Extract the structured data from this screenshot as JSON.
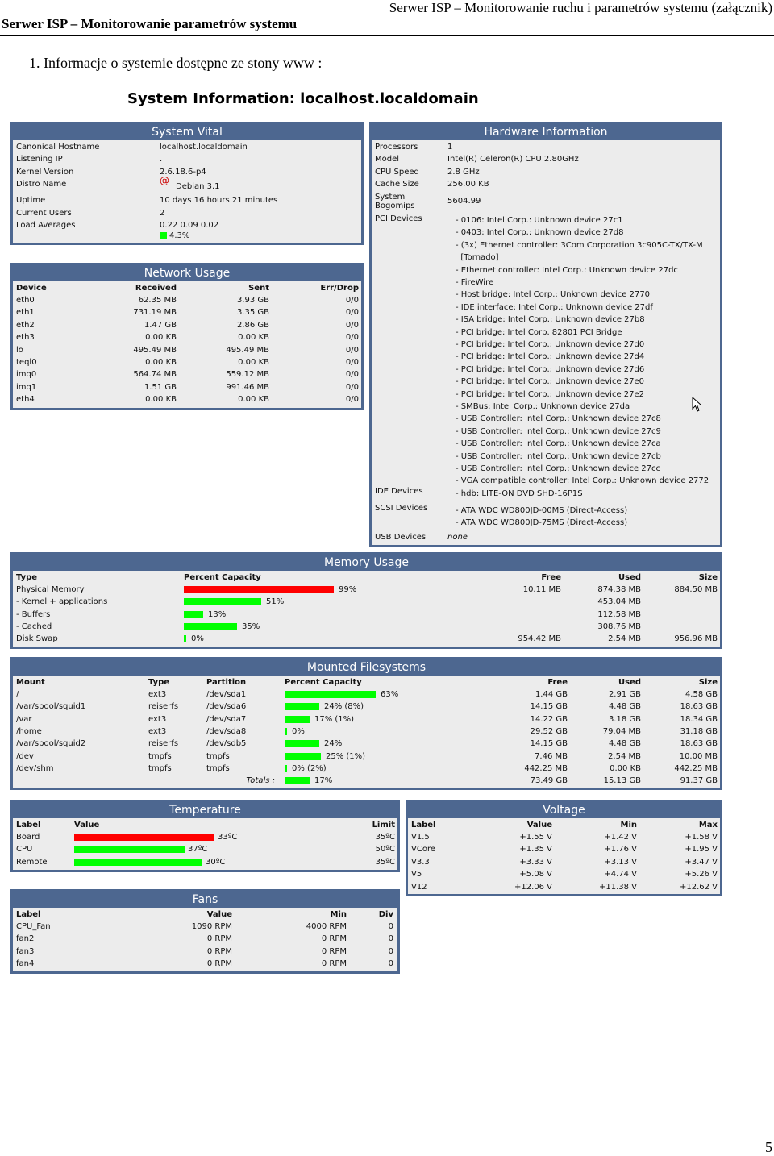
{
  "header": {
    "left": "Serwer ISP – Monitorowanie parametrów systemu",
    "right": "Serwer ISP – Monitorowanie ruchu i parametrów systemu (załącznik)"
  },
  "section_heading": "1.   Informacje o systemie dostępne ze stony www :",
  "page_number": "5",
  "sysinfo_title": "System Information: localhost.localdomain",
  "system_vital": {
    "title": "System Vital",
    "rows": [
      {
        "label": "Canonical Hostname",
        "value": "localhost.localdomain"
      },
      {
        "label": "Listening IP",
        "value": "."
      },
      {
        "label": "Kernel Version",
        "value": "2.6.18.6-p4"
      },
      {
        "label": "Distro Name",
        "value": "Debian 3.1"
      },
      {
        "label": "Uptime",
        "value": "10 days 16 hours 21 minutes"
      },
      {
        "label": "Current Users",
        "value": "2"
      },
      {
        "label": "Load Averages",
        "value": "0.22 0.09 0.02"
      }
    ],
    "load_percent": "4.3%",
    "load_fraction": 0.043
  },
  "network": {
    "title": "Network Usage",
    "headers": [
      "Device",
      "Received",
      "Sent",
      "Err/Drop"
    ],
    "rows": [
      [
        "eth0",
        "62.35 MB",
        "3.93 GB",
        "0/0"
      ],
      [
        "eth1",
        "731.19 MB",
        "3.35 GB",
        "0/0"
      ],
      [
        "eth2",
        "1.47 GB",
        "2.86 GB",
        "0/0"
      ],
      [
        "eth3",
        "0.00 KB",
        "0.00 KB",
        "0/0"
      ],
      [
        "lo",
        "495.49 MB",
        "495.49 MB",
        "0/0"
      ],
      [
        "teql0",
        "0.00 KB",
        "0.00 KB",
        "0/0"
      ],
      [
        "imq0",
        "564.74 MB",
        "559.12 MB",
        "0/0"
      ],
      [
        "imq1",
        "1.51 GB",
        "991.46 MB",
        "0/0"
      ],
      [
        "eth4",
        "0.00 KB",
        "0.00 KB",
        "0/0"
      ]
    ]
  },
  "hardware": {
    "title": "Hardware Information",
    "processors_label": "Processors",
    "processors": "1",
    "model_label": "Model",
    "model": "Intel(R) Celeron(R) CPU 2.80GHz",
    "cpu_speed_label": "CPU Speed",
    "cpu_speed": "2.8 GHz",
    "cache_label": "Cache Size",
    "cache": "256.00 KB",
    "bogomips_label1": "System",
    "bogomips_label2": "Bogomips",
    "bogomips": "5604.99",
    "pci_label": "PCI Devices",
    "pci": [
      "- 0106: Intel Corp.: Unknown device 27c1",
      "- 0403: Intel Corp.: Unknown device 27d8",
      "- (3x) Ethernet controller: 3Com Corporation 3c905C-TX/TX-M",
      "  [Tornado]",
      "- Ethernet controller: Intel Corp.: Unknown device 27dc",
      "- FireWire",
      "- Host bridge: Intel Corp.: Unknown device 2770",
      "- IDE interface: Intel Corp.: Unknown device 27df",
      "- ISA bridge: Intel Corp.: Unknown device 27b8",
      "- PCI bridge: Intel Corp. 82801 PCI Bridge",
      "- PCI bridge: Intel Corp.: Unknown device 27d0",
      "- PCI bridge: Intel Corp.: Unknown device 27d4",
      "- PCI bridge: Intel Corp.: Unknown device 27d6",
      "- PCI bridge: Intel Corp.: Unknown device 27e0",
      "- PCI bridge: Intel Corp.: Unknown device 27e2",
      "- SMBus: Intel Corp.: Unknown device 27da",
      "- USB Controller: Intel Corp.: Unknown device 27c8",
      "- USB Controller: Intel Corp.: Unknown device 27c9",
      "- USB Controller: Intel Corp.: Unknown device 27ca",
      "- USB Controller: Intel Corp.: Unknown device 27cb",
      "- USB Controller: Intel Corp.: Unknown device 27cc",
      "- VGA compatible controller: Intel Corp.: Unknown device 2772"
    ],
    "ide_label": "IDE Devices",
    "ide": "- hdb: LITE-ON DVD SHD-16P1S",
    "scsi_label": "SCSI Devices",
    "scsi": [
      "- ATA WDC WD800JD-00MS (Direct-Access)",
      "- ATA WDC WD800JD-75MS (Direct-Access)"
    ],
    "usb_label": "USB Devices",
    "usb": "none"
  },
  "memory": {
    "title": "Memory Usage",
    "headers": [
      "Type",
      "Percent Capacity",
      "Free",
      "Used",
      "Size"
    ],
    "rows": [
      {
        "type": "Physical Memory",
        "pct": "99%",
        "frac": 0.99,
        "color": "#ff0000",
        "free": "10.11 MB",
        "used": "874.38 MB",
        "size": "884.50 MB"
      },
      {
        "type": "- Kernel + applications",
        "pct": "51%",
        "frac": 0.51,
        "color": "#00ff00",
        "free": "",
        "used": "453.04 MB",
        "size": ""
      },
      {
        "type": "- Buffers",
        "pct": "13%",
        "frac": 0.13,
        "color": "#00ff00",
        "free": "",
        "used": "112.58 MB",
        "size": ""
      },
      {
        "type": "- Cached",
        "pct": "35%",
        "frac": 0.35,
        "color": "#00ff00",
        "free": "",
        "used": "308.76 MB",
        "size": ""
      },
      {
        "type": "Disk Swap",
        "pct": "0%",
        "frac": 0.0,
        "color": "#00ff00",
        "free": "954.42 MB",
        "used": "2.54 MB",
        "size": "956.96 MB"
      }
    ]
  },
  "filesystems": {
    "title": "Mounted Filesystems",
    "headers": [
      "Mount",
      "Type",
      "Partition",
      "Percent Capacity",
      "Free",
      "Used",
      "Size"
    ],
    "rows": [
      {
        "mount": "/",
        "type": "ext3",
        "part": "/dev/sda1",
        "pct": "63%",
        "frac": 0.63,
        "free": "1.44 GB",
        "used": "2.91 GB",
        "size": "4.58 GB"
      },
      {
        "mount": "/var/spool/squid1",
        "type": "reiserfs",
        "part": "/dev/sda6",
        "pct": "24% (8%)",
        "frac": 0.24,
        "free": "14.15 GB",
        "used": "4.48 GB",
        "size": "18.63 GB"
      },
      {
        "mount": "/var",
        "type": "ext3",
        "part": "/dev/sda7",
        "pct": "17% (1%)",
        "frac": 0.17,
        "free": "14.22 GB",
        "used": "3.18 GB",
        "size": "18.34 GB"
      },
      {
        "mount": "/home",
        "type": "ext3",
        "part": "/dev/sda8",
        "pct": "0%",
        "frac": 0.0,
        "free": "29.52 GB",
        "used": "79.04 MB",
        "size": "31.18 GB"
      },
      {
        "mount": "/var/spool/squid2",
        "type": "reiserfs",
        "part": "/dev/sdb5",
        "pct": "24%",
        "frac": 0.24,
        "free": "14.15 GB",
        "used": "4.48 GB",
        "size": "18.63 GB"
      },
      {
        "mount": "/dev",
        "type": "tmpfs",
        "part": "tmpfs",
        "pct": "25% (1%)",
        "frac": 0.25,
        "free": "7.46 MB",
        "used": "2.54 MB",
        "size": "10.00 MB"
      },
      {
        "mount": "/dev/shm",
        "type": "tmpfs",
        "part": "tmpfs",
        "pct": "0% (2%)",
        "frac": 0.0,
        "free": "442.25 MB",
        "used": "0.00 KB",
        "size": "442.25 MB"
      }
    ],
    "totals_label": "Totals :",
    "totals": {
      "pct": "17%",
      "frac": 0.17,
      "free": "73.49 GB",
      "used": "15.13 GB",
      "size": "91.37 GB"
    }
  },
  "temperature": {
    "title": "Temperature",
    "headers": [
      "Label",
      "Value",
      "Limit"
    ],
    "rows": [
      {
        "label": "Board",
        "value": "33ºC",
        "frac": 0.94,
        "color": "#ff0000",
        "limit": "35ºC"
      },
      {
        "label": "CPU",
        "value": "37ºC",
        "frac": 0.74,
        "color": "#00ff00",
        "limit": "50ºC"
      },
      {
        "label": "Remote",
        "value": "30ºC",
        "frac": 0.86,
        "color": "#00ff00",
        "limit": "35ºC"
      }
    ]
  },
  "voltage": {
    "title": "Voltage",
    "headers": [
      "Label",
      "Value",
      "Min",
      "Max"
    ],
    "rows": [
      [
        "V1.5",
        "+1.55 V",
        "+1.42 V",
        "+1.58 V"
      ],
      [
        "VCore",
        "+1.35 V",
        "+1.76 V",
        "+1.95 V"
      ],
      [
        "V3.3",
        "+3.33 V",
        "+3.13 V",
        "+3.47 V"
      ],
      [
        "V5",
        "+5.08 V",
        "+4.74 V",
        "+5.26 V"
      ],
      [
        "V12",
        "+12.06 V",
        "+11.38 V",
        "+12.62 V"
      ]
    ]
  },
  "fans": {
    "title": "Fans",
    "headers": [
      "Label",
      "Value",
      "Min",
      "Div"
    ],
    "rows": [
      [
        "CPU_Fan",
        "1090 RPM",
        "4000 RPM",
        "0"
      ],
      [
        "fan2",
        "0 RPM",
        "0 RPM",
        "0"
      ],
      [
        "fan3",
        "0 RPM",
        "0 RPM",
        "0"
      ],
      [
        "fan4",
        "0 RPM",
        "0 RPM",
        "0"
      ]
    ]
  }
}
